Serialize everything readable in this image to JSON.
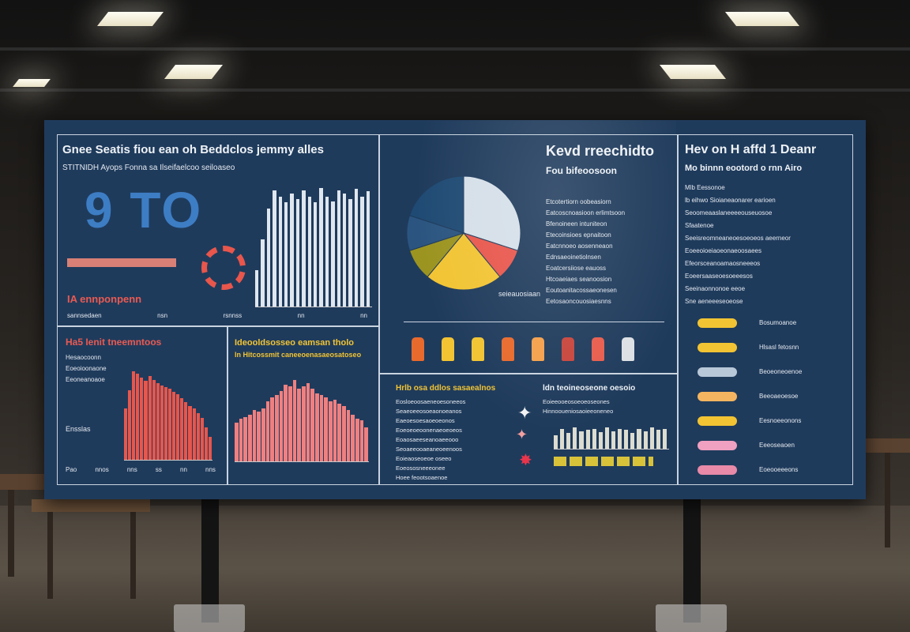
{
  "scene": {
    "description_colors": {
      "board": "#1f3b5c",
      "accent_red": "#e8564c",
      "accent_yellow": "#f2c433",
      "accent_blue": "#3d7dc4"
    }
  },
  "panel1": {
    "title": "Gnee Seatis fiou ean oh Beddclos jemmy alles",
    "subtitle": "STITNIDH Ayops Fonna sa  Ilseifaelcoo seiloaseo",
    "big_number": "9 TO",
    "label": "IA ennponpenn",
    "footer": [
      "sannsedaen",
      "nsn",
      "rsnnss",
      "nn",
      "nn"
    ],
    "bars": [
      0.3,
      0.55,
      0.8,
      0.95,
      0.9,
      0.85,
      0.92,
      0.88,
      0.95,
      0.9,
      0.85,
      0.97,
      0.9,
      0.86,
      0.95,
      0.92,
      0.88,
      0.96,
      0.9,
      0.94
    ]
  },
  "panel2": {
    "title": "Kevd rreechidto",
    "subtitle": "Fou bifeoosoon",
    "lines": [
      "Etcotertiorn oobeasiorn",
      "Eatcoscnoasioon erlimtsoon",
      "Bfenoineen intuniteon",
      "Etecoinsioes epnaitoon",
      "Eatcnnoeo aosenneaon",
      "Ednsaeoinetiolnsen",
      "Eoatcersiiose eauoss",
      "Htcoaeiaes seanoosion",
      "Eoutoanitacossaeonesen",
      "Eetosaoncouosiaesnns"
    ],
    "pie_caption": "seieauosiaan",
    "pie": [
      {
        "value": 30,
        "color": "#d5dfe8"
      },
      {
        "value": 9,
        "color": "#e8564c"
      },
      {
        "value": 22,
        "color": "#f2c433"
      },
      {
        "value": 9,
        "color": "#9c9420"
      },
      {
        "value": 10,
        "color": "#2b5580"
      },
      {
        "value": 20,
        "color": "#1f4a73"
      }
    ]
  },
  "panel3": {
    "title": "Hev on H affd 1 Deanr",
    "subtitle": "Mo binnn eootord o rnn Airo",
    "lines": [
      "Mlb  Eessonoe",
      "lb eihwo Sioianeaonarer earioen",
      "Seoomeaaslaneeeeouseuosoe",
      "Sfaatenoe",
      "Seeisreomneaneoesoeoeos aeerneor",
      "Eoeeoioeiaoeonaeoosaees",
      "Efeorsceanoamaosneeeos",
      "Eoeersaaseoesoeeesos",
      "Seeinaonnonoe eeoe",
      "Sne aeneeeseoeose"
    ],
    "legend": [
      {
        "label": "Bosumoanoe",
        "color": "#f2c433"
      },
      {
        "label": "Hlsasl fetosnn",
        "color": "#f2c433"
      },
      {
        "label": "Beoeoneoenoe",
        "color": "#b8c8d8"
      },
      {
        "label": "Beeoaeoesoe",
        "color": "#f5b560"
      },
      {
        "label": "Eesnoeeonons",
        "color": "#f2c433"
      },
      {
        "label": "Eeeoseaoen",
        "color": "#f0a0c0"
      },
      {
        "label": "Eoeooeeeons",
        "color": "#e88aa8"
      }
    ]
  },
  "panel4": {
    "title": "Ha5 Ienit tneemntoos",
    "lines": [
      "Hesaocoonn",
      "Eoeoioonaone",
      "Eeoneanoaoe"
    ],
    "caption": "Ensslas",
    "bars": [
      0.55,
      0.75,
      0.95,
      0.92,
      0.88,
      0.85,
      0.9,
      0.86,
      0.82,
      0.8,
      0.78,
      0.76,
      0.73,
      0.7,
      0.66,
      0.62,
      0.58,
      0.55,
      0.5,
      0.45,
      0.35,
      0.25
    ],
    "footer": [
      "Pao",
      "nnos",
      "nns",
      "ss",
      "nn",
      "nns"
    ]
  },
  "panel5": {
    "title": "Ideooldsosseo eamsan tholo",
    "subtitle": "ln Hitcossmit caneeoenasaeosatoseo",
    "bars": [
      0.45,
      0.5,
      0.52,
      0.55,
      0.6,
      0.58,
      0.62,
      0.7,
      0.75,
      0.78,
      0.82,
      0.9,
      0.88,
      0.95,
      0.85,
      0.88,
      0.92,
      0.85,
      0.8,
      0.78,
      0.75,
      0.7,
      0.72,
      0.68,
      0.65,
      0.6,
      0.55,
      0.5,
      0.48,
      0.4
    ]
  },
  "panel6": {
    "title": "Hrlb osa ddlos sasaealnos",
    "caption": "ldn teoineoseone oesoio",
    "lines": [
      "Eosloeoosaeneoesoneeos",
      "Seaeoeeosoeaonoeanos",
      "Eaeoesoesaoeoeonos",
      "Eoeoeoeoonenaeoeoeos",
      "Eoaosaeeseanoaeeooo",
      "Seoaeeooaeaneoeenoos",
      "Eoieaoseoeoe  oseeo",
      "Eoeososneeeonee",
      "Hoee feootsoaenoe"
    ],
    "sub_lines": [
      "Eoieeooeosoeoeoseones",
      "Hinnooueniosaoieeoneneo"
    ]
  }
}
